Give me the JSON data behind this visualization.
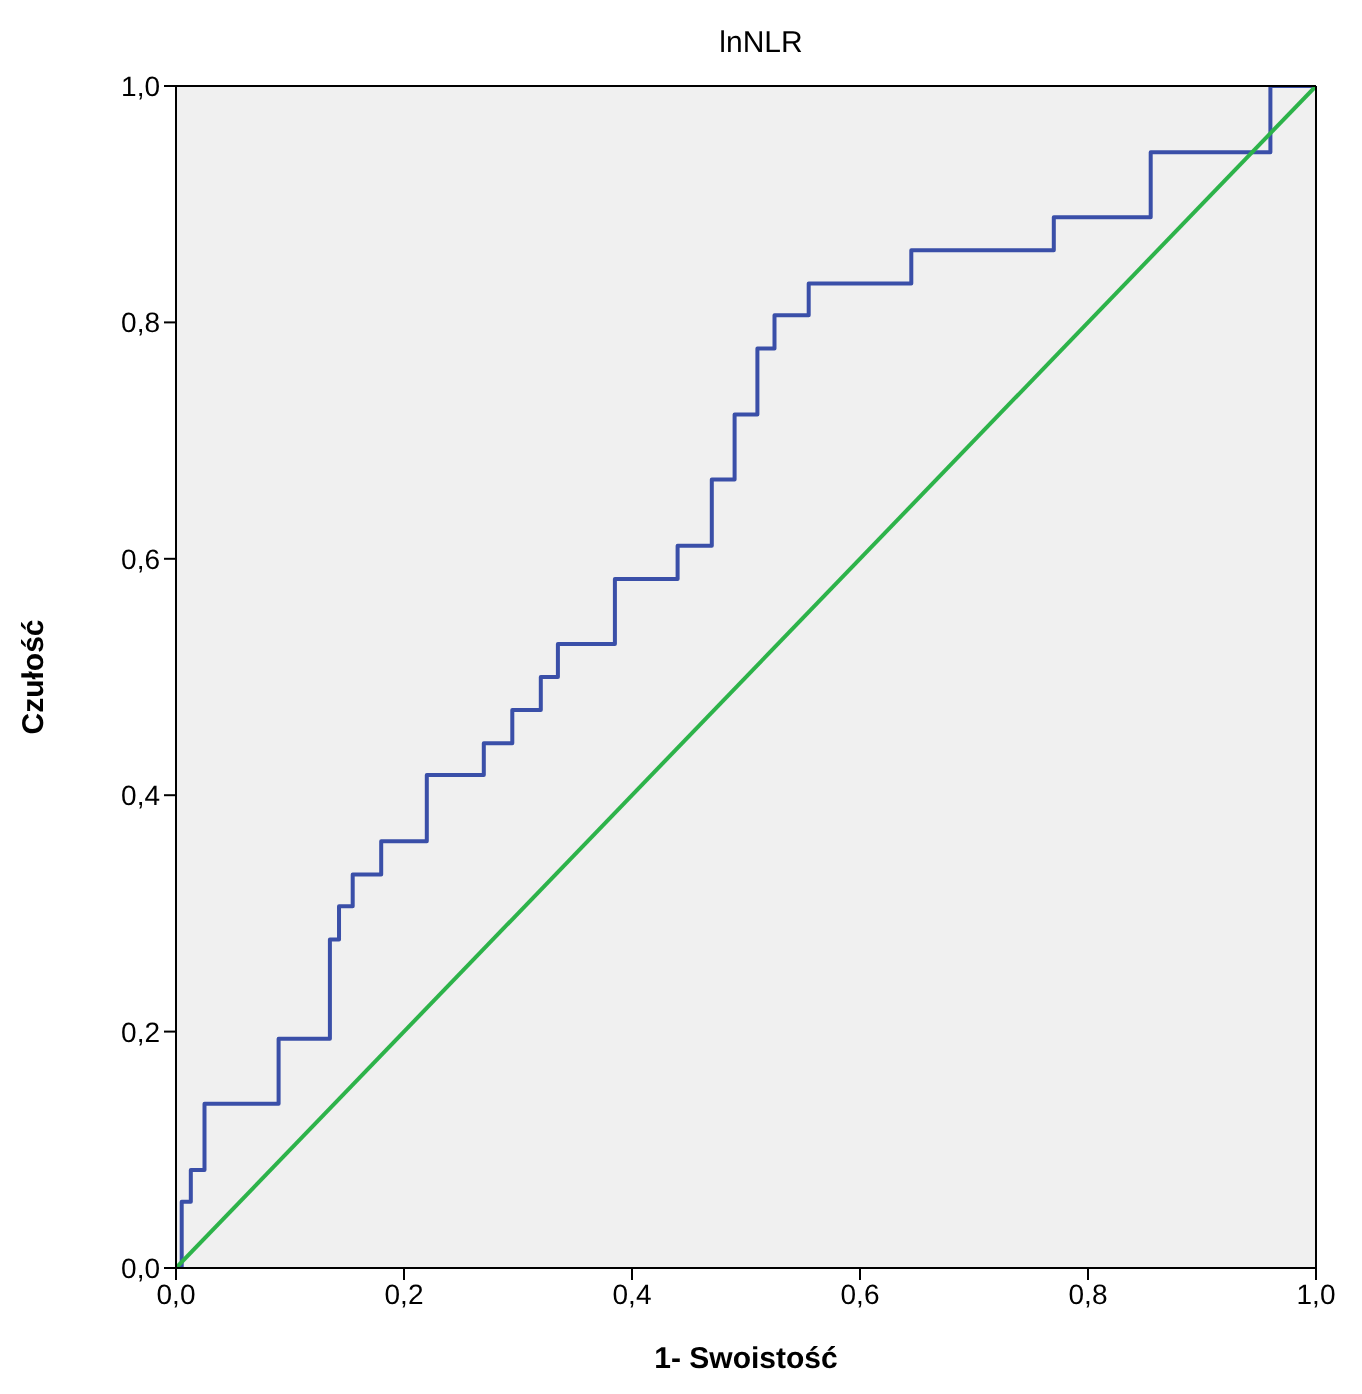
{
  "chart_data": {
    "type": "step",
    "title": "lnNLR",
    "xlabel": "1- Swoistość",
    "ylabel": "Czułość",
    "xlim": [
      0,
      1
    ],
    "ylim": [
      0,
      1
    ],
    "xticks": [
      {
        "value": 0,
        "label": "0,0"
      },
      {
        "value": 0.2,
        "label": "0,2"
      },
      {
        "value": 0.4,
        "label": "0,4"
      },
      {
        "value": 0.6,
        "label": "0,6"
      },
      {
        "value": 0.8,
        "label": "0,8"
      },
      {
        "value": 1,
        "label": "1,0"
      }
    ],
    "yticks": [
      {
        "value": 0,
        "label": "0,0"
      },
      {
        "value": 0.2,
        "label": "0,2"
      },
      {
        "value": 0.4,
        "label": "0,4"
      },
      {
        "value": 0.6,
        "label": "0,6"
      },
      {
        "value": 0.8,
        "label": "0,8"
      },
      {
        "value": 1,
        "label": "1,0"
      }
    ],
    "series": [
      {
        "color": "#3a4fa8",
        "x": [
          0,
          0.005,
          0.013,
          0.025,
          0.09,
          0.135,
          0.143,
          0.155,
          0.18,
          0.22,
          0.27,
          0.295,
          0.32,
          0.335,
          0.385,
          0.44,
          0.47,
          0.49,
          0.51,
          0.525,
          0.555,
          0.645,
          0.77,
          0.855,
          0.96,
          1
        ],
        "values": [
          0,
          0.056,
          0.083,
          0.139,
          0.194,
          0.278,
          0.306,
          0.333,
          0.361,
          0.417,
          0.444,
          0.472,
          0.5,
          0.528,
          0.583,
          0.611,
          0.667,
          0.722,
          0.778,
          0.806,
          0.833,
          0.861,
          0.889,
          0.944,
          1,
          1
        ]
      },
      {
        "type": "line",
        "color": "#2db34a",
        "x": [
          0,
          1
        ],
        "values": [
          0,
          1
        ]
      }
    ]
  }
}
